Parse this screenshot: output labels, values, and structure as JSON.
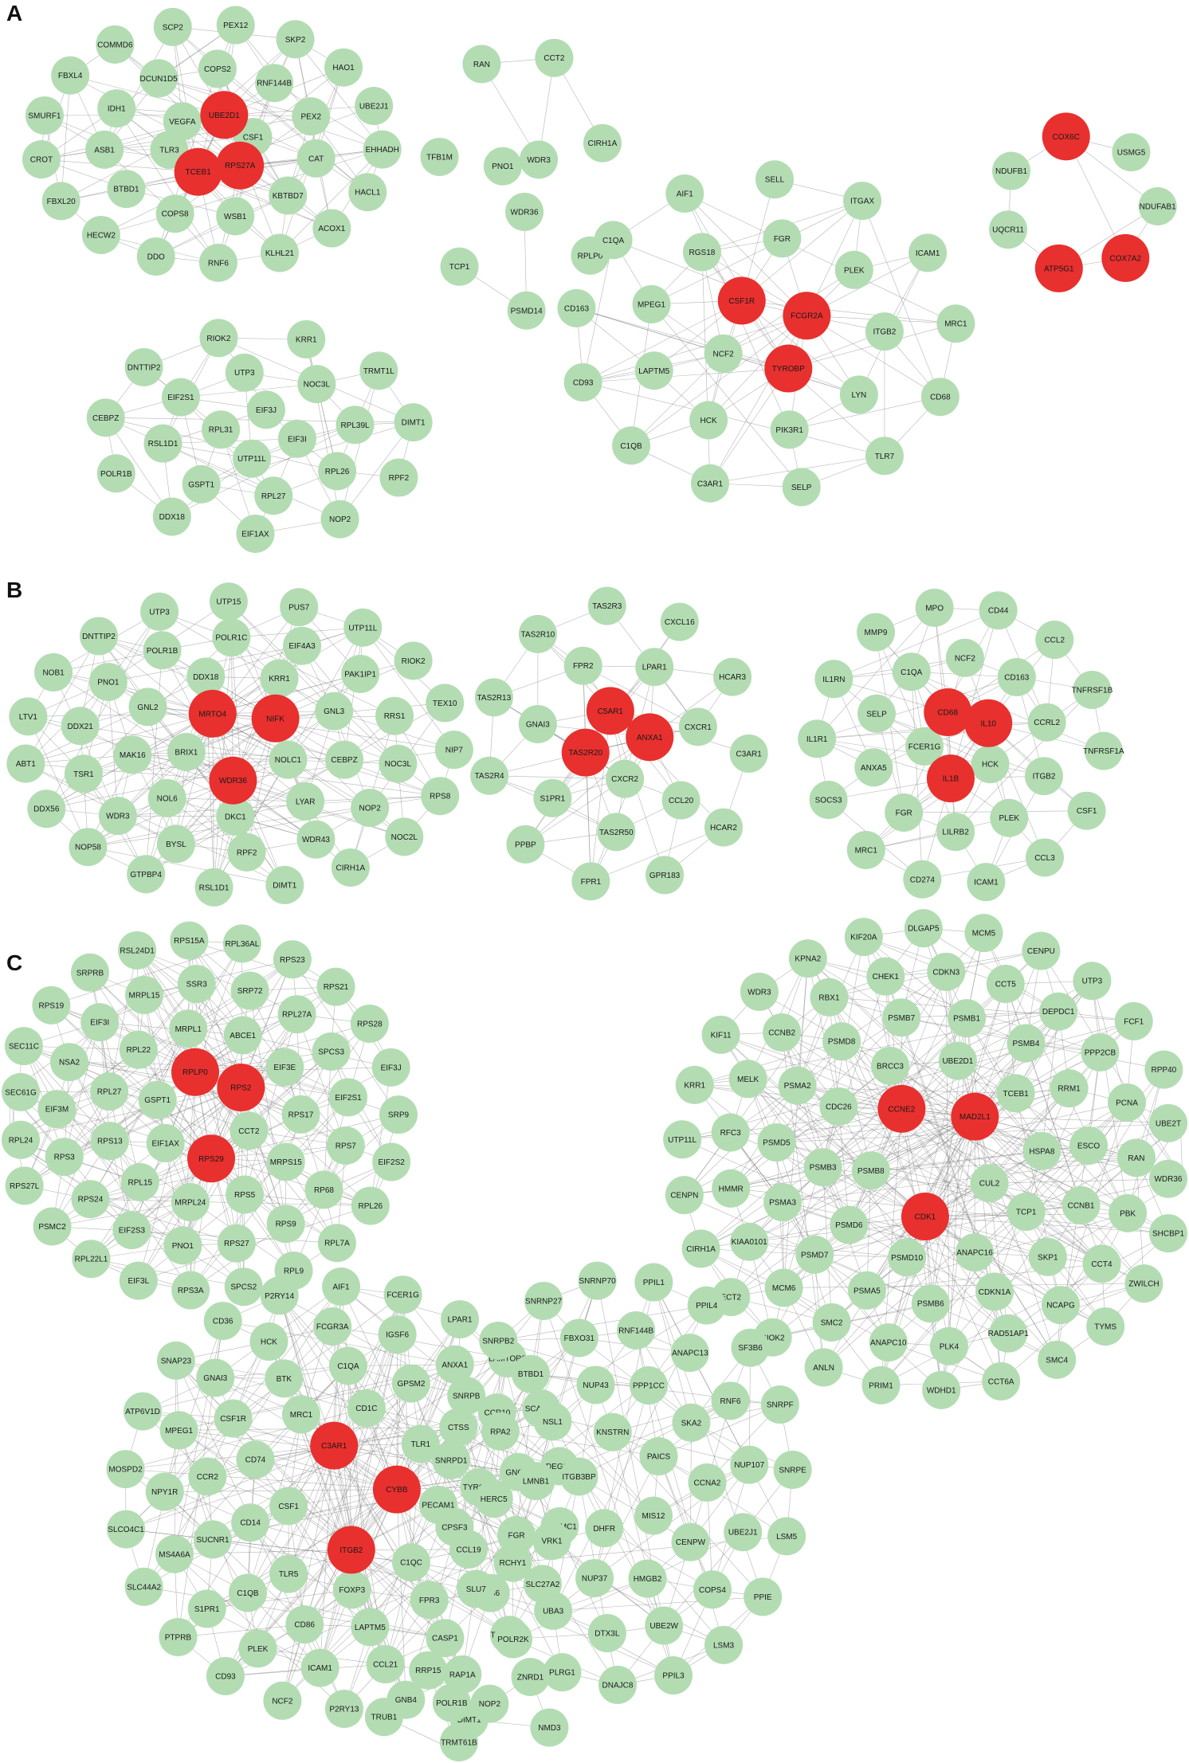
{
  "colors": {
    "normal_node": "#b3dcb3",
    "hub_node": "#e8302e",
    "edge": "#7a7a7a",
    "background": "#ffffff"
  },
  "panels": [
    {
      "label": "A",
      "clusters": [
        {
          "id": "A1",
          "nodes": [
            "VEGFA",
            "CSF1",
            "TLR3",
            "COPS2",
            "TCEB1",
            "WSB1",
            "COPS8",
            "DCUN1D5",
            "RNF144B",
            "KBTBD7",
            "BTBD1",
            "IDH1",
            "PEX2",
            "CAT",
            "UBE2D1",
            "ASB1",
            "RNF6",
            "PEX12",
            "SCP2",
            "DDO",
            "KLHL21",
            "SKP2",
            "COMMD6",
            "HECW2",
            "ACOX1",
            "HAO1",
            "FBXL4",
            "FBXL20",
            "HACL1",
            "RPS27A",
            "UBE2J1",
            "SMURF1",
            "CROT",
            "EHHADH"
          ],
          "hubs": [
            "TCEB1",
            "UBE2D1",
            "RPS27A"
          ]
        },
        {
          "id": "A2",
          "nodes": [
            "UTP11L",
            "EIF3J",
            "RPL31",
            "EIF3I",
            "UTP3",
            "RPL27",
            "GSPT1",
            "NOC3L",
            "EIF2S1",
            "RPL26",
            "RSL1D1",
            "RPL39L",
            "EIF1AX",
            "RIOK2",
            "KRR1",
            "NOP2",
            "DDX18",
            "DNTTIP2",
            "TRMT1L",
            "RPF2",
            "POLR1B",
            "CEBPZ",
            "DIMT1"
          ],
          "hubs": []
        },
        {
          "id": "A3",
          "nodes": [
            "PNO1",
            "WDR3",
            "WDR36",
            "TFB1M",
            "CIRH1A",
            "RPLP0",
            "TCP1",
            "RAN",
            "CCT2",
            "PSMD14"
          ],
          "hubs": []
        },
        {
          "id": "A4",
          "nodes": [
            "NCF2",
            "FGR",
            "PIK3R1",
            "HCK",
            "RGS18",
            "PLEK",
            "LYN",
            "LAPTM5",
            "MPEG1",
            "ITGB2",
            "TYROBP",
            "CSF1R",
            "SELL",
            "SELP",
            "FCGR2A",
            "C3AR1",
            "AIF1",
            "ITGAX",
            "TLR7",
            "C1QB",
            "C1QA",
            "ICAM1",
            "CD68",
            "CD93",
            "CD163",
            "MRC1"
          ],
          "hubs": [
            "TYROBP",
            "CSF1R",
            "FCGR2A"
          ]
        },
        {
          "id": "A5",
          "nodes": [
            "COX6C",
            "USMG5",
            "ATP5G1",
            "NDUFB1",
            "COX7A2",
            "UQCR11",
            "NDUFAB1"
          ],
          "hubs": [
            "COX6C",
            "ATP5G1",
            "COX7A2"
          ]
        }
      ]
    },
    {
      "label": "B",
      "clusters": [
        {
          "id": "B1",
          "nodes": [
            "NOLC1",
            "BRIX1",
            "DKC1",
            "DDX18",
            "KRR1",
            "LYAR",
            "NOL6",
            "GNL2",
            "GNL3",
            "CEBPZ",
            "MAK16",
            "RPF2",
            "POLR1C",
            "EIF4A3",
            "BYSL",
            "WDR36",
            "WDR43",
            "POLR1B",
            "PAK1IP1",
            "WDR3",
            "UTP15",
            "RSL1D1",
            "PNO1",
            "NOP2",
            "MRTO4",
            "DIMT1",
            "PUS7",
            "UTP3",
            "TSR1",
            "RRS1",
            "GTPBP4",
            "DDX21",
            "NOC3L",
            "NIFK",
            "CIRH1A",
            "UTP11L",
            "DNTTIP2",
            "NOP58",
            "NOC2L",
            "RIOK2",
            "NOB1",
            "DDX56",
            "RPS8",
            "TEX10",
            "LTV1",
            "ABT1",
            "NIP7"
          ],
          "hubs": [
            "WDR36",
            "MRTO4",
            "NIFK"
          ]
        },
        {
          "id": "B2",
          "nodes": [
            "ANXA1",
            "CXCR2",
            "CXCR1",
            "GNAI3",
            "S1PR1",
            "CCL20",
            "TAS2R20",
            "LPAR1",
            "FPR2",
            "C5AR1",
            "TAS2R50",
            "C3AR1",
            "TAS2R4",
            "TAS2R13",
            "HCAR3",
            "HCAR2",
            "PPBP",
            "TAS2R10",
            "CXCL16",
            "GPR183",
            "FPR1",
            "TAS2R3"
          ],
          "hubs": [
            "ANXA1",
            "TAS2R20",
            "C5AR1"
          ]
        },
        {
          "id": "B3",
          "nodes": [
            "HCK",
            "FCER1G",
            "LILRB2",
            "NCF2",
            "PLEK",
            "C1QA",
            "FGR",
            "CD163",
            "ITGB2",
            "SELP",
            "ANXA5",
            "IL1B",
            "CD68",
            "CCRL2",
            "MPO",
            "ICAM1",
            "CD44",
            "CD274",
            "MMP9",
            "CCL3",
            "CCL2",
            "MRC1",
            "IL1RN",
            "CSF1",
            "TNFRSF1B",
            "SOCS3",
            "IL1R1",
            "TNFRSF1A",
            "IL10"
          ],
          "hubs": [
            "IL1B",
            "CD68",
            "IL10"
          ]
        }
      ]
    },
    {
      "label": "C",
      "clusters": [
        {
          "id": "C1",
          "nodes": [
            "EIF1AX",
            "CCT2",
            "GSPT1",
            "MRPL24",
            "MRPL1",
            "ABCE1",
            "RPS5",
            "RPL15",
            "RPL22",
            "EIF3E",
            "MRPS15",
            "RPS13",
            "RPL27",
            "RPS17",
            "SSR3",
            "PNO1",
            "RPS29",
            "RPS27",
            "SRP72",
            "MRPL15",
            "EIF2S3",
            "RPS9",
            "RPL27A",
            "EIF3I",
            "RPLP0",
            "RPS24",
            "RPS2",
            "RP68",
            "SPCS3",
            "NSA2",
            "RPS3",
            "RPS7",
            "EIF2S1",
            "EIF3M",
            "RPS3A",
            "RPS15A",
            "RPL36AL",
            "SPCS2",
            "EIF3L",
            "RSL24D1",
            "RPS23",
            "RPL9",
            "RPL22L1",
            "SRPRB",
            "RPS21",
            "RPL7A",
            "PSMC2",
            "RPS19",
            "RPS28",
            "RPL26",
            "RPS27L",
            "SEC11C",
            "EIF3J",
            "EIF2S2",
            "RPL24",
            "SEC61G",
            "SRP9"
          ],
          "hubs": [
            "RPS29",
            "RPLP0",
            "RPS2"
          ]
        },
        {
          "id": "C2",
          "nodes": [
            "CUL2",
            "PSMB8",
            "PSMD10",
            "UBE2D1",
            "ANAPC16",
            "BRCC3",
            "PSMD6",
            "TCEB1",
            "TCP1",
            "CDC26",
            "PSMB3",
            "HSPA8",
            "PSMB6",
            "PSMB7",
            "PSMB1",
            "CDKN1A",
            "PSMA5",
            "PSMD8",
            "PSMB4",
            "SKP1",
            "PSMD7",
            "PSMA2",
            "RRM1",
            "CCNB1",
            "CDK1",
            "CCNE2",
            "PSMA3",
            "PSMD5",
            "ESCO",
            "CDKN3",
            "PLK4",
            "ANAPC10",
            "CHEK1",
            "MAD2L1",
            "CCT5",
            "RAD51AP1",
            "SMC2",
            "RBX1",
            "DEPDC1",
            "NCAPG",
            "MCM6",
            "CCNB2",
            "PPP2CB",
            "CCT4",
            "KIAA0101",
            "MELK",
            "PCNA",
            "PBK",
            "HMMR",
            "RFC3",
            "RAN",
            "WDHD1",
            "DLGAP5",
            "PRIM1",
            "MCM5",
            "CCT6A",
            "KIF20A",
            "ANLN",
            "CENPU",
            "KPNA2",
            "SMC4",
            "RIOK2",
            "UTP3",
            "WDR3",
            "TYMS",
            "FCF1",
            "ECT2",
            "KIF11",
            "ZWILCH",
            "CIRH1A",
            "RPP40",
            "KRR1",
            "SHCBP1",
            "UBE2T",
            "CENPN",
            "WDR36",
            "UTP11L"
          ],
          "hubs": [
            "CDK1",
            "CCNE2",
            "MAD2L1"
          ]
        },
        {
          "id": "C3",
          "nodes": [
            "CSF1",
            "FOXP3",
            "CD1C",
            "MRC1",
            "TLR5",
            "C1QC",
            "TLR1",
            "CD74",
            "CD14",
            "PECAM1",
            "C1QA",
            "LAPTM5",
            "CD86",
            "BTK",
            "GPSM2",
            "FPR3",
            "C1QB",
            "CSF1R",
            "CTSS",
            "CCL19",
            "SUCNR1",
            "CCR2",
            "TYROBP",
            "FCGR3A",
            "ICAM1",
            "CCL21",
            "IGSF6",
            "HCK",
            "PLEK",
            "CASP1",
            "ANXA1",
            "GNAI3",
            "S1PR1",
            "LY86",
            "CCR10",
            "MPEG1",
            "MS4A6A",
            "FGR",
            "GNG11",
            "NPY1R",
            "P2RY13",
            "AIF1",
            "C3AR1",
            "FCER1G",
            "NCF2",
            "ITGB2",
            "CYBB",
            "P2RY14",
            "GNB4",
            "LPAR1",
            "CD93",
            "CD36",
            "RAP1A",
            "PTPRB",
            "LAMTOR3",
            "TMEM30A",
            "SNAP23",
            "SCAMP1",
            "SLC44A2",
            "ATP6V1D",
            "SLC27A2",
            "DEGS1",
            "SLCO4C1",
            "PGRMC1",
            "MOSPD2"
          ],
          "hubs": [
            "C3AR1",
            "ITGB2",
            "CYBB"
          ]
        },
        {
          "id": "C4",
          "nodes": [
            "ITGB3BP",
            "PAICS",
            "MIS12",
            "DHFR",
            "KNSTRN",
            "CCNA2",
            "LMNB1",
            "SKA2",
            "VRK1",
            "NSL1",
            "CENPW",
            "PPP1CC",
            "NUP37",
            "NUP43",
            "HMGB2",
            "NUP107",
            "HERC5",
            "UBE2J1",
            "RPA2",
            "RNF6",
            "RCHY1",
            "BTBD1",
            "COPS4",
            "UBA3",
            "ANAPC13",
            "FBXO31",
            "UBE2W",
            "DTX3L",
            "RNF144B",
            "SNRPE",
            "SNRPD1",
            "CPSF3",
            "LSM5",
            "SNRPF",
            "SNRPB",
            "SLU7",
            "PPIE",
            "SF3B6",
            "SNRPB2",
            "POLR2K",
            "LSM3",
            "PPIL4",
            "SNRNP27",
            "PLRG1",
            "PPIL3",
            "PPIL1",
            "SNRNP70",
            "DNAJC8"
          ],
          "hubs": []
        },
        {
          "id": "C5",
          "nodes": [
            "DIMT1",
            "POLR1B",
            "NOP2",
            "TRMT61B",
            "RRP15",
            "ZNRD1",
            "NMD3",
            "TRUB1"
          ],
          "hubs": []
        }
      ]
    }
  ]
}
